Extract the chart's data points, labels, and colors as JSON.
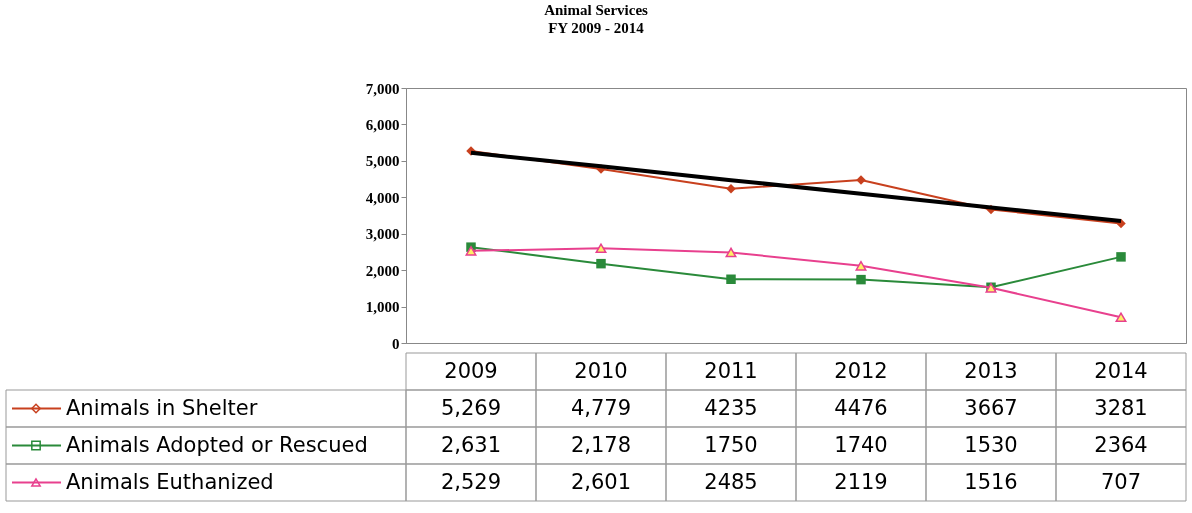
{
  "chart_data": {
    "type": "line",
    "title": "Animal Services",
    "subtitle": "FY 2009 - 2014",
    "categories": [
      "2009",
      "2010",
      "2011",
      "2012",
      "2013",
      "2014"
    ],
    "series": [
      {
        "name": "Animals in Shelter",
        "color": "#c8401e",
        "marker": "diamond",
        "values": [
          5269,
          4779,
          4235,
          4476,
          3667,
          3281
        ],
        "value_labels": [
          "5,269",
          "4,779",
          "4235",
          "4476",
          "3667",
          "3281"
        ]
      },
      {
        "name": "Animals Adopted or Rescued",
        "color": "#2a8a3a",
        "marker": "square",
        "values": [
          2631,
          2178,
          1750,
          1740,
          1530,
          2364
        ],
        "value_labels": [
          "2,631",
          "2,178",
          "1750",
          "1740",
          "1530",
          "2364"
        ]
      },
      {
        "name": "Animals Euthanized",
        "color": "#e8408e",
        "marker": "triangle",
        "values": [
          2529,
          2601,
          2485,
          2119,
          1516,
          707
        ],
        "value_labels": [
          "2,529",
          "2,601",
          "2485",
          "2119",
          "1516",
          "707"
        ]
      },
      {
        "type": "line",
        "color": "#000000",
        "marker": "none",
        "values": [
          5220,
          4850,
          4470,
          4100,
          3720,
          3350
        ]
      }
    ],
    "ylim": [
      0,
      7000
    ],
    "yticks": [
      {
        "value": 0,
        "label": "0"
      },
      {
        "value": 1000,
        "label": "1,000"
      },
      {
        "value": 2000,
        "label": "2,000"
      },
      {
        "value": 3000,
        "label": "3,000"
      },
      {
        "value": 4000,
        "label": "4,000"
      },
      {
        "value": 5000,
        "label": "5,000"
      },
      {
        "value": 6000,
        "label": "6,000"
      },
      {
        "value": 7000,
        "label": "7,000"
      }
    ],
    "grid": false,
    "legend": "bottom left"
  }
}
